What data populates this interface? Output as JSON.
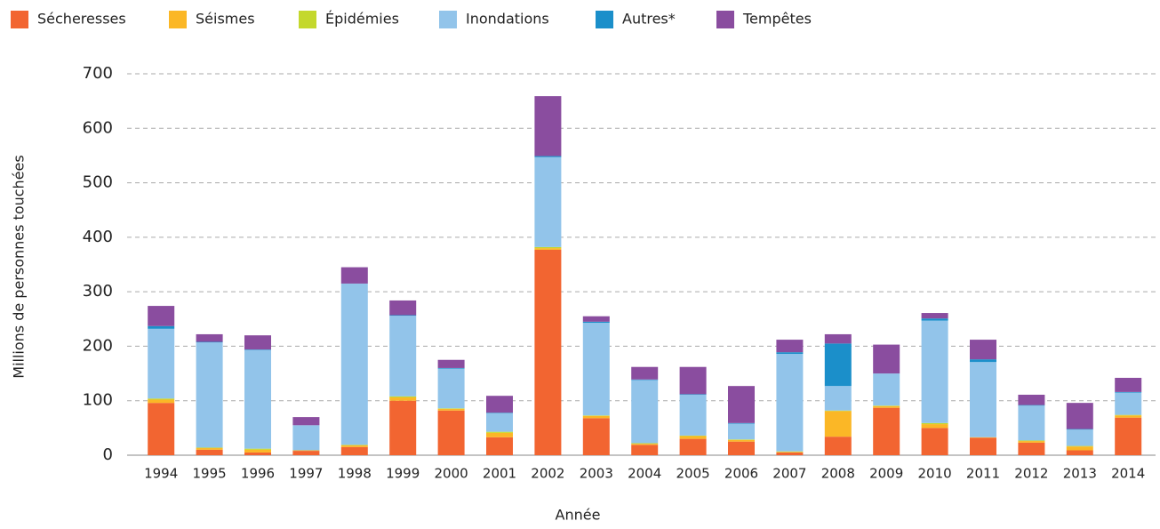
{
  "chart_data": {
    "type": "stacked_bar",
    "x_label": "Année",
    "y_label": "Millions de personnes touchées",
    "categories": [
      "1994",
      "1995",
      "1996",
      "1997",
      "1998",
      "1999",
      "2000",
      "2001",
      "2002",
      "2003",
      "2004",
      "2005",
      "2006",
      "2007",
      "2008",
      "2009",
      "2010",
      "2011",
      "2012",
      "2013",
      "2014"
    ],
    "series": [
      {
        "name": "Sécheresses",
        "color": "#f26531",
        "values": [
          96,
          10,
          5,
          8,
          15,
          100,
          82,
          33,
          377,
          68,
          19,
          30,
          25,
          5,
          34,
          87,
          50,
          32,
          23,
          9,
          69
        ]
      },
      {
        "name": "Séismes",
        "color": "#fbb726",
        "values": [
          6,
          3,
          5,
          1,
          3,
          6,
          3,
          8,
          3,
          4,
          2,
          5,
          3,
          1,
          47,
          3,
          7,
          1,
          3,
          7,
          4
        ]
      },
      {
        "name": "Épidémies",
        "color": "#c4d82d",
        "values": [
          2,
          1,
          2,
          0,
          1,
          2,
          1,
          2,
          2,
          1,
          1,
          1,
          1,
          1,
          1,
          1,
          2,
          0,
          1,
          1,
          1
        ]
      },
      {
        "name": "Inondations",
        "color": "#92c4ea",
        "values": [
          128,
          193,
          181,
          46,
          296,
          148,
          73,
          34,
          165,
          170,
          116,
          75,
          29,
          179,
          45,
          59,
          188,
          138,
          64,
          30,
          41
        ]
      },
      {
        "name": "Autres*",
        "color": "#1b8fca",
        "values": [
          5,
          1,
          1,
          0,
          0,
          1,
          1,
          1,
          2,
          2,
          1,
          1,
          1,
          3,
          78,
          0,
          4,
          5,
          1,
          1,
          1
        ]
      },
      {
        "name": "Tempêtes",
        "color": "#8a4d9f",
        "values": [
          37,
          14,
          26,
          15,
          30,
          27,
          15,
          31,
          110,
          10,
          23,
          50,
          68,
          23,
          17,
          53,
          10,
          36,
          19,
          48,
          26
        ]
      }
    ],
    "ylim": [
      0,
      700
    ],
    "yticks": [
      0,
      100,
      200,
      300,
      400,
      500,
      600,
      700
    ],
    "grid": true
  }
}
